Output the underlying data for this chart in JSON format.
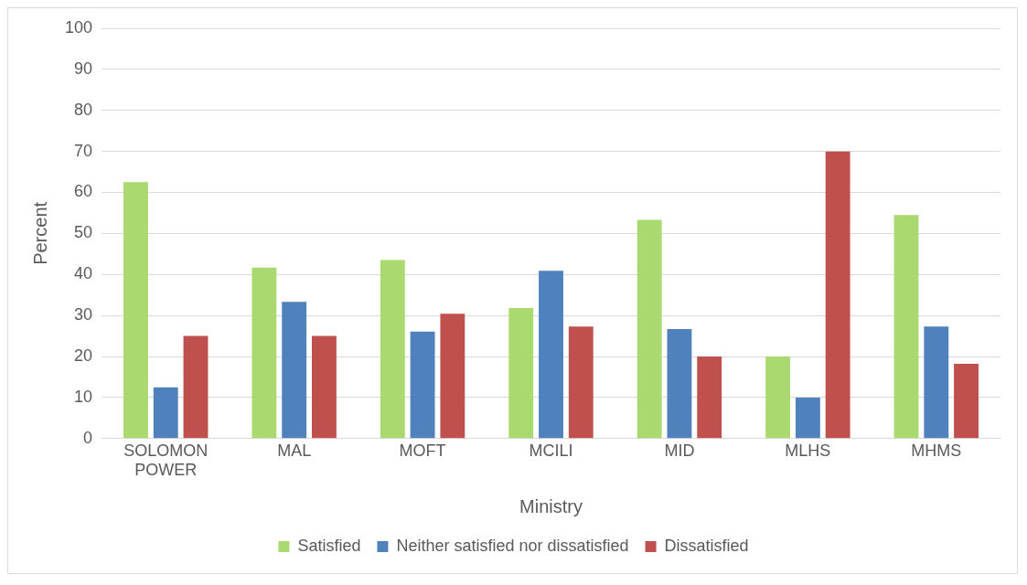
{
  "chart_data": {
    "type": "bar",
    "xlabel": "Ministry",
    "ylabel": "Percent",
    "categories": [
      "SOLOMON POWER",
      "MAL",
      "MOFT",
      "MCILI",
      "MID",
      "MLHS",
      "MHMS"
    ],
    "series": [
      {
        "name": "Satisfied",
        "color": "#a9d96f",
        "values": [
          62.5,
          41.7,
          43.5,
          31.8,
          53.3,
          20,
          54.5
        ]
      },
      {
        "name": "Neither satisfied nor dissatisfied",
        "color": "#4f81bd",
        "values": [
          12.5,
          33.3,
          26.1,
          40.9,
          26.7,
          10,
          27.3
        ]
      },
      {
        "name": "Dissatisfied",
        "color": "#c0504d",
        "values": [
          25,
          25,
          30.4,
          27.3,
          20,
          70,
          18.2
        ]
      }
    ],
    "ylim": [
      0,
      100
    ],
    "yticks": [
      0,
      10,
      20,
      30,
      40,
      50,
      60,
      70,
      80,
      90,
      100
    ],
    "grid": "y",
    "legend": "bottom"
  }
}
